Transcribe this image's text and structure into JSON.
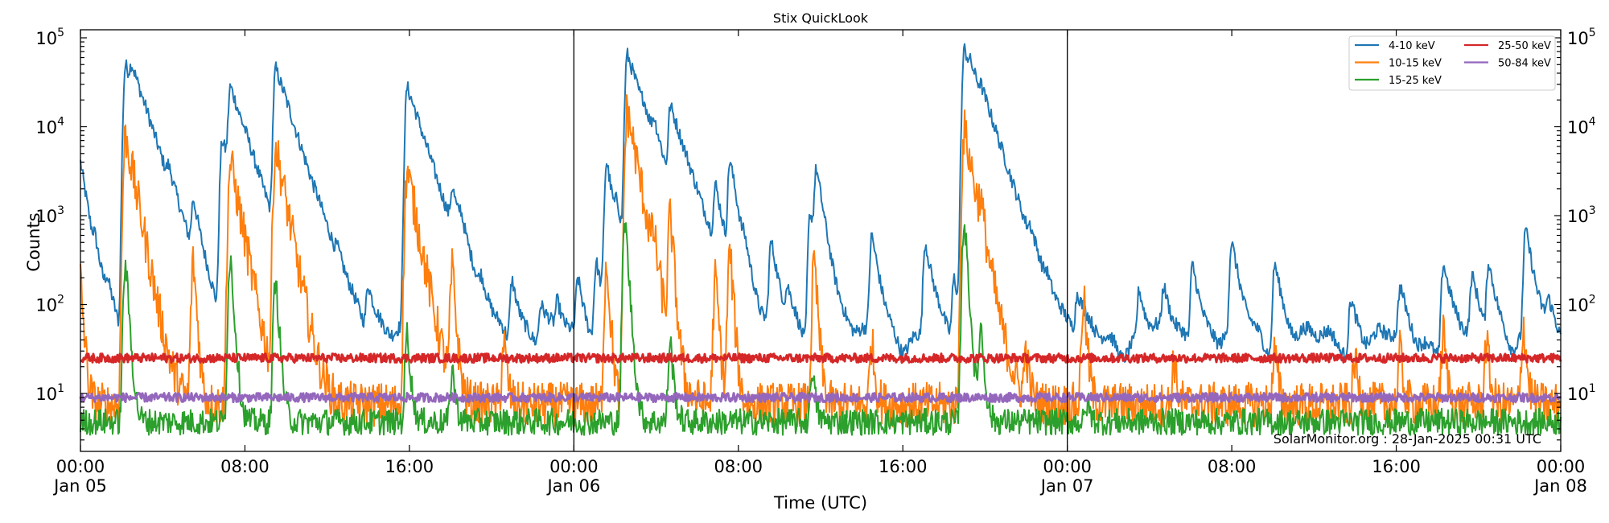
{
  "chart_data": {
    "type": "line",
    "title": "Stix QuickLook",
    "xlabel": "Time (UTC)",
    "ylabel": "Counts",
    "yscale": "log",
    "ylim": [
      2.2,
      100000
    ],
    "xlim_hours": [
      0,
      72
    ],
    "x_ticks": [
      {
        "hour": 0,
        "time": "00:00",
        "date": "Jan 05"
      },
      {
        "hour": 8,
        "time": "08:00",
        "date": ""
      },
      {
        "hour": 16,
        "time": "16:00",
        "date": ""
      },
      {
        "hour": 24,
        "time": "00:00",
        "date": "Jan 06"
      },
      {
        "hour": 32,
        "time": "08:00",
        "date": ""
      },
      {
        "hour": 40,
        "time": "16:00",
        "date": ""
      },
      {
        "hour": 48,
        "time": "00:00",
        "date": "Jan 07"
      },
      {
        "hour": 56,
        "time": "08:00",
        "date": ""
      },
      {
        "hour": 64,
        "time": "16:00",
        "date": ""
      },
      {
        "hour": 72,
        "time": "00:00",
        "date": "Jan 08"
      }
    ],
    "y_ticks": [
      {
        "exp": 1,
        "base": "10",
        "sup": "1"
      },
      {
        "exp": 2,
        "base": "10",
        "sup": "2"
      },
      {
        "exp": 3,
        "base": "10",
        "sup": "3"
      },
      {
        "exp": 4,
        "base": "10",
        "sup": "4"
      },
      {
        "exp": 5,
        "base": "10",
        "sup": "5"
      }
    ],
    "day_boundaries_hours": [
      24,
      48
    ],
    "grid": false,
    "legend_position": "upper right",
    "series": [
      {
        "name": "4-10 keV",
        "color": "#1f77b4",
        "baseline": 40,
        "peaks": [
          [
            0.0,
            4000
          ],
          [
            0.7,
            250
          ],
          [
            1.3,
            120
          ],
          [
            2.2,
            50000
          ],
          [
            2.5,
            20000
          ],
          [
            3.2,
            400
          ],
          [
            4.3,
            1200
          ],
          [
            5.5,
            1200
          ],
          [
            6.9,
            7000
          ],
          [
            7.3,
            25000
          ],
          [
            8.0,
            600
          ],
          [
            9.5,
            45000
          ],
          [
            9.9,
            900
          ],
          [
            11.5,
            150
          ],
          [
            12.5,
            140
          ],
          [
            14.0,
            160
          ],
          [
            15.9,
            28000
          ],
          [
            16.3,
            600
          ],
          [
            17.0,
            150
          ],
          [
            18.1,
            1400
          ],
          [
            18.5,
            450
          ],
          [
            19.5,
            110
          ],
          [
            21.0,
            200
          ],
          [
            22.4,
            100
          ],
          [
            23.2,
            100
          ],
          [
            24.2,
            200
          ],
          [
            25.1,
            300
          ],
          [
            25.6,
            4000
          ],
          [
            26.1,
            800
          ],
          [
            26.6,
            65000
          ],
          [
            27.4,
            3000
          ],
          [
            27.9,
            5000
          ],
          [
            28.7,
            15000
          ],
          [
            29.4,
            130
          ],
          [
            30.9,
            1800
          ],
          [
            31.6,
            4000
          ],
          [
            32.3,
            200
          ],
          [
            33.6,
            500
          ],
          [
            34.4,
            120
          ],
          [
            35.5,
            1100
          ],
          [
            35.8,
            3000
          ],
          [
            38.5,
            600
          ],
          [
            41.1,
            500
          ],
          [
            42.5,
            200
          ],
          [
            43.0,
            75000
          ],
          [
            43.3,
            9000
          ],
          [
            43.8,
            6500
          ],
          [
            46.2,
            250
          ],
          [
            47.0,
            100
          ],
          [
            48.5,
            120
          ],
          [
            51.5,
            150
          ],
          [
            52.7,
            150
          ],
          [
            54.1,
            300
          ],
          [
            56.0,
            500
          ],
          [
            58.1,
            300
          ],
          [
            61.8,
            120
          ],
          [
            64.2,
            150
          ],
          [
            66.3,
            300
          ],
          [
            67.7,
            200
          ],
          [
            68.5,
            300
          ],
          [
            70.3,
            700
          ],
          [
            71.4,
            90
          ]
        ]
      },
      {
        "name": "10-15 keV",
        "color": "#ff7f0e",
        "baseline": 7.5,
        "peaks": [
          [
            0.0,
            200
          ],
          [
            2.2,
            8000
          ],
          [
            3.0,
            30
          ],
          [
            5.5,
            300
          ],
          [
            7.3,
            4000
          ],
          [
            9.5,
            6000
          ],
          [
            15.9,
            3200
          ],
          [
            18.1,
            250
          ],
          [
            20.6,
            40
          ],
          [
            25.6,
            300
          ],
          [
            26.6,
            15000
          ],
          [
            27.9,
            300
          ],
          [
            28.7,
            1000
          ],
          [
            30.9,
            200
          ],
          [
            31.6,
            400
          ],
          [
            35.7,
            300
          ],
          [
            38.5,
            40
          ],
          [
            43.0,
            9000
          ],
          [
            43.8,
            700
          ],
          [
            46.0,
            30
          ],
          [
            48.8,
            120
          ],
          [
            53.2,
            25
          ],
          [
            58.1,
            30
          ],
          [
            62.0,
            25
          ],
          [
            64.2,
            30
          ],
          [
            66.3,
            50
          ],
          [
            68.4,
            40
          ],
          [
            70.2,
            60
          ]
        ]
      },
      {
        "name": "15-25 keV",
        "color": "#2ca02c",
        "baseline": 4.8,
        "peaks": [
          [
            2.2,
            300
          ],
          [
            7.3,
            350
          ],
          [
            9.5,
            200
          ],
          [
            15.9,
            50
          ],
          [
            18.1,
            20
          ],
          [
            26.5,
            900
          ],
          [
            28.7,
            40
          ],
          [
            35.6,
            20
          ],
          [
            43.0,
            900
          ],
          [
            43.8,
            60
          ],
          [
            49.0,
            8
          ]
        ]
      },
      {
        "name": "25-50 keV",
        "color": "#d62728",
        "baseline": 25,
        "peaks": []
      },
      {
        "name": "50-84 keV",
        "color": "#9467bd",
        "baseline": 9,
        "peaks": []
      }
    ],
    "annotation": "SolarMonitor.org : 28-Jan-2025 00:31 UTC"
  },
  "legend": {
    "col1": [
      "4-10 keV",
      "10-15 keV",
      "15-25 keV"
    ],
    "col2": [
      "25-50 keV",
      "50-84 keV"
    ]
  }
}
